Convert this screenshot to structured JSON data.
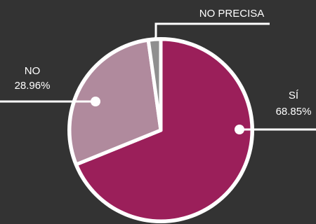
{
  "chart_data": {
    "type": "pie",
    "title": "",
    "slices": [
      {
        "label": "SÍ",
        "value": 68.85,
        "pct_label": "68.85%",
        "color": "#9b1f5a"
      },
      {
        "label": "NO",
        "value": 28.96,
        "pct_label": "28.96%",
        "color": "#b08a9d"
      },
      {
        "label": "NO PRECISA",
        "value": 2.19,
        "pct_label": "",
        "color": "#8f8f8f"
      }
    ],
    "slice_border_color": "#ffffff",
    "leader_line_color": "#ffffff",
    "background": "#333333"
  }
}
